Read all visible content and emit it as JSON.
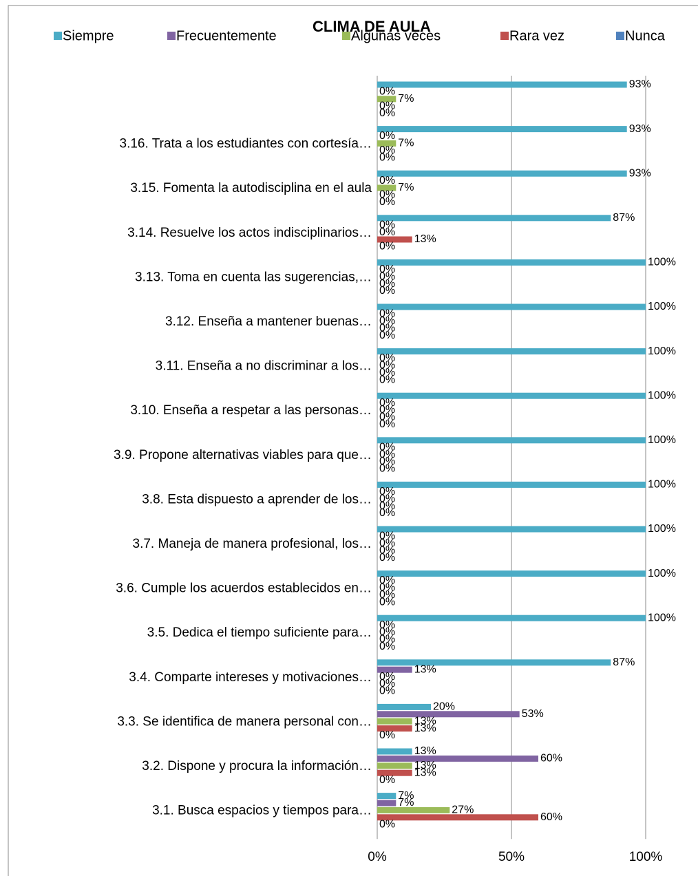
{
  "chart_data": {
    "type": "bar",
    "orientation": "horizontal",
    "title": "CLIMA DE AULA",
    "categories": [
      null,
      "3.16.    Trata a los estudiantes con cortesía…",
      "3.15.    Fomenta la autodisciplina en el aula",
      "3.14.    Resuelve los actos indisciplinarios…",
      "3.13.    Toma en cuenta las sugerencias,…",
      "3.12.    Enseña a mantener buenas…",
      "3.11.    Enseña a no discriminar a los…",
      "3.10.    Enseña a respetar a las personas…",
      "3.9.  Propone alternativas viables para que…",
      "3.8.  Esta dispuesto a aprender de los…",
      "3.7.  Maneja de manera  profesional, los…",
      "3.6.  Cumple los acuerdos establecidos en…",
      "3.5.  Dedica el tiempo suficiente para…",
      "3.4.  Comparte intereses y motivaciones…",
      "3.3.  Se identifica de manera personal con…",
      "3.2.  Dispone y procura la información…",
      "3.1.  Busca espacios y tiempos para…"
    ],
    "series": [
      {
        "name": "Siempre",
        "color": "#4BACC6",
        "values": [
          93,
          93,
          93,
          87,
          100,
          100,
          100,
          100,
          100,
          100,
          100,
          100,
          100,
          87,
          20,
          13,
          7
        ],
        "value_labels": [
          "93%",
          "93%",
          "93%",
          "87%",
          "100%",
          "100%",
          "100%",
          "100%",
          "100%",
          "100%",
          "100%",
          "100%",
          "100%",
          "87%",
          "20%",
          "13%",
          "7%"
        ]
      },
      {
        "name": "Frecuentemente",
        "color": "#8064A2",
        "values": [
          0,
          0,
          0,
          0,
          0,
          0,
          0,
          0,
          0,
          0,
          0,
          0,
          0,
          13,
          53,
          60,
          7
        ],
        "value_labels": [
          "0%",
          "0%",
          "0%",
          "0%",
          "0%",
          "0%",
          "0%",
          "0%",
          "0%",
          "0%",
          "0%",
          "0%",
          "0%",
          "13%",
          "53%",
          "60%",
          "7%"
        ]
      },
      {
        "name": "Algunas veces",
        "color": "#9BBB59",
        "values": [
          7,
          7,
          7,
          0,
          0,
          0,
          0,
          0,
          0,
          0,
          0,
          0,
          0,
          0,
          13,
          13,
          27
        ],
        "value_labels": [
          "7%",
          "7%",
          "7%",
          "0%",
          "0%",
          "0%",
          "0%",
          "0%",
          "0%",
          "0%",
          "0%",
          "0%",
          "0%",
          "0%",
          "13%",
          "13%",
          "27%"
        ]
      },
      {
        "name": "Rara vez",
        "color": "#C0504D",
        "values": [
          0,
          0,
          0,
          13,
          0,
          0,
          0,
          0,
          0,
          0,
          0,
          0,
          0,
          0,
          13,
          13,
          60
        ],
        "value_labels": [
          "0%",
          "0%",
          "0%",
          "13%",
          "0%",
          "0%",
          "0%",
          "0%",
          "0%",
          "0%",
          "0%",
          "0%",
          "0%",
          "0%",
          "13%",
          "13%",
          "60%"
        ]
      },
      {
        "name": "Nunca",
        "color": "#4F81BD",
        "values": [
          0,
          0,
          0,
          0,
          0,
          0,
          0,
          0,
          0,
          0,
          0,
          0,
          0,
          0,
          0,
          0,
          0
        ],
        "value_labels": [
          "0%",
          "0%",
          "0%",
          "0%",
          "0%",
          "0%",
          "0%",
          "0%",
          "0%",
          "0%",
          "0%",
          "0%",
          "0%",
          "0%",
          "0%",
          "0%",
          "0%"
        ]
      }
    ],
    "xlim": [
      0,
      100
    ],
    "xticks": [
      {
        "value": 0,
        "label": "0%"
      },
      {
        "value": 50,
        "label": "50%"
      },
      {
        "value": 100,
        "label": "100%"
      }
    ],
    "grid": true,
    "legend": "top"
  }
}
